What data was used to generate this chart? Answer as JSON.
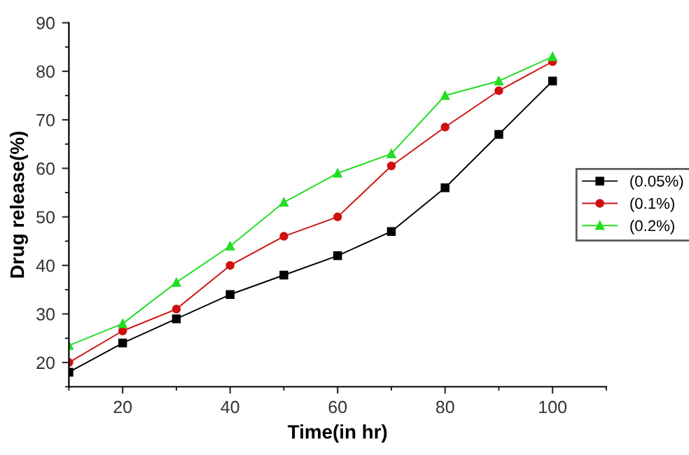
{
  "chart_data": {
    "type": "line",
    "xlabel": "Time(in hr)",
    "ylabel": "Drug release(%)",
    "x": [
      10,
      20,
      30,
      40,
      50,
      60,
      70,
      80,
      90,
      100
    ],
    "series": [
      {
        "name": "(0.05%)",
        "color": "#000000",
        "marker": "square",
        "values": [
          18,
          24,
          29,
          34,
          38,
          42,
          47,
          56,
          67,
          78
        ]
      },
      {
        "name": "(0.1%)",
        "color": "#d01010",
        "marker": "circle",
        "values": [
          20,
          26.5,
          31,
          40,
          46,
          50,
          60.5,
          68.5,
          76,
          82
        ]
      },
      {
        "name": "(0.2%)",
        "color": "#22dd22",
        "marker": "triangle",
        "values": [
          23.5,
          28,
          36.5,
          44,
          53,
          59,
          63,
          75,
          78,
          83
        ]
      }
    ],
    "xlim": [
      10,
      110
    ],
    "xticks": [
      20,
      40,
      60,
      80,
      100
    ],
    "ylim": [
      15,
      90
    ],
    "yticks": [
      20,
      30,
      40,
      50,
      60,
      70,
      80,
      90
    ],
    "grid": false,
    "legend": "right",
    "line_style": "solid"
  }
}
